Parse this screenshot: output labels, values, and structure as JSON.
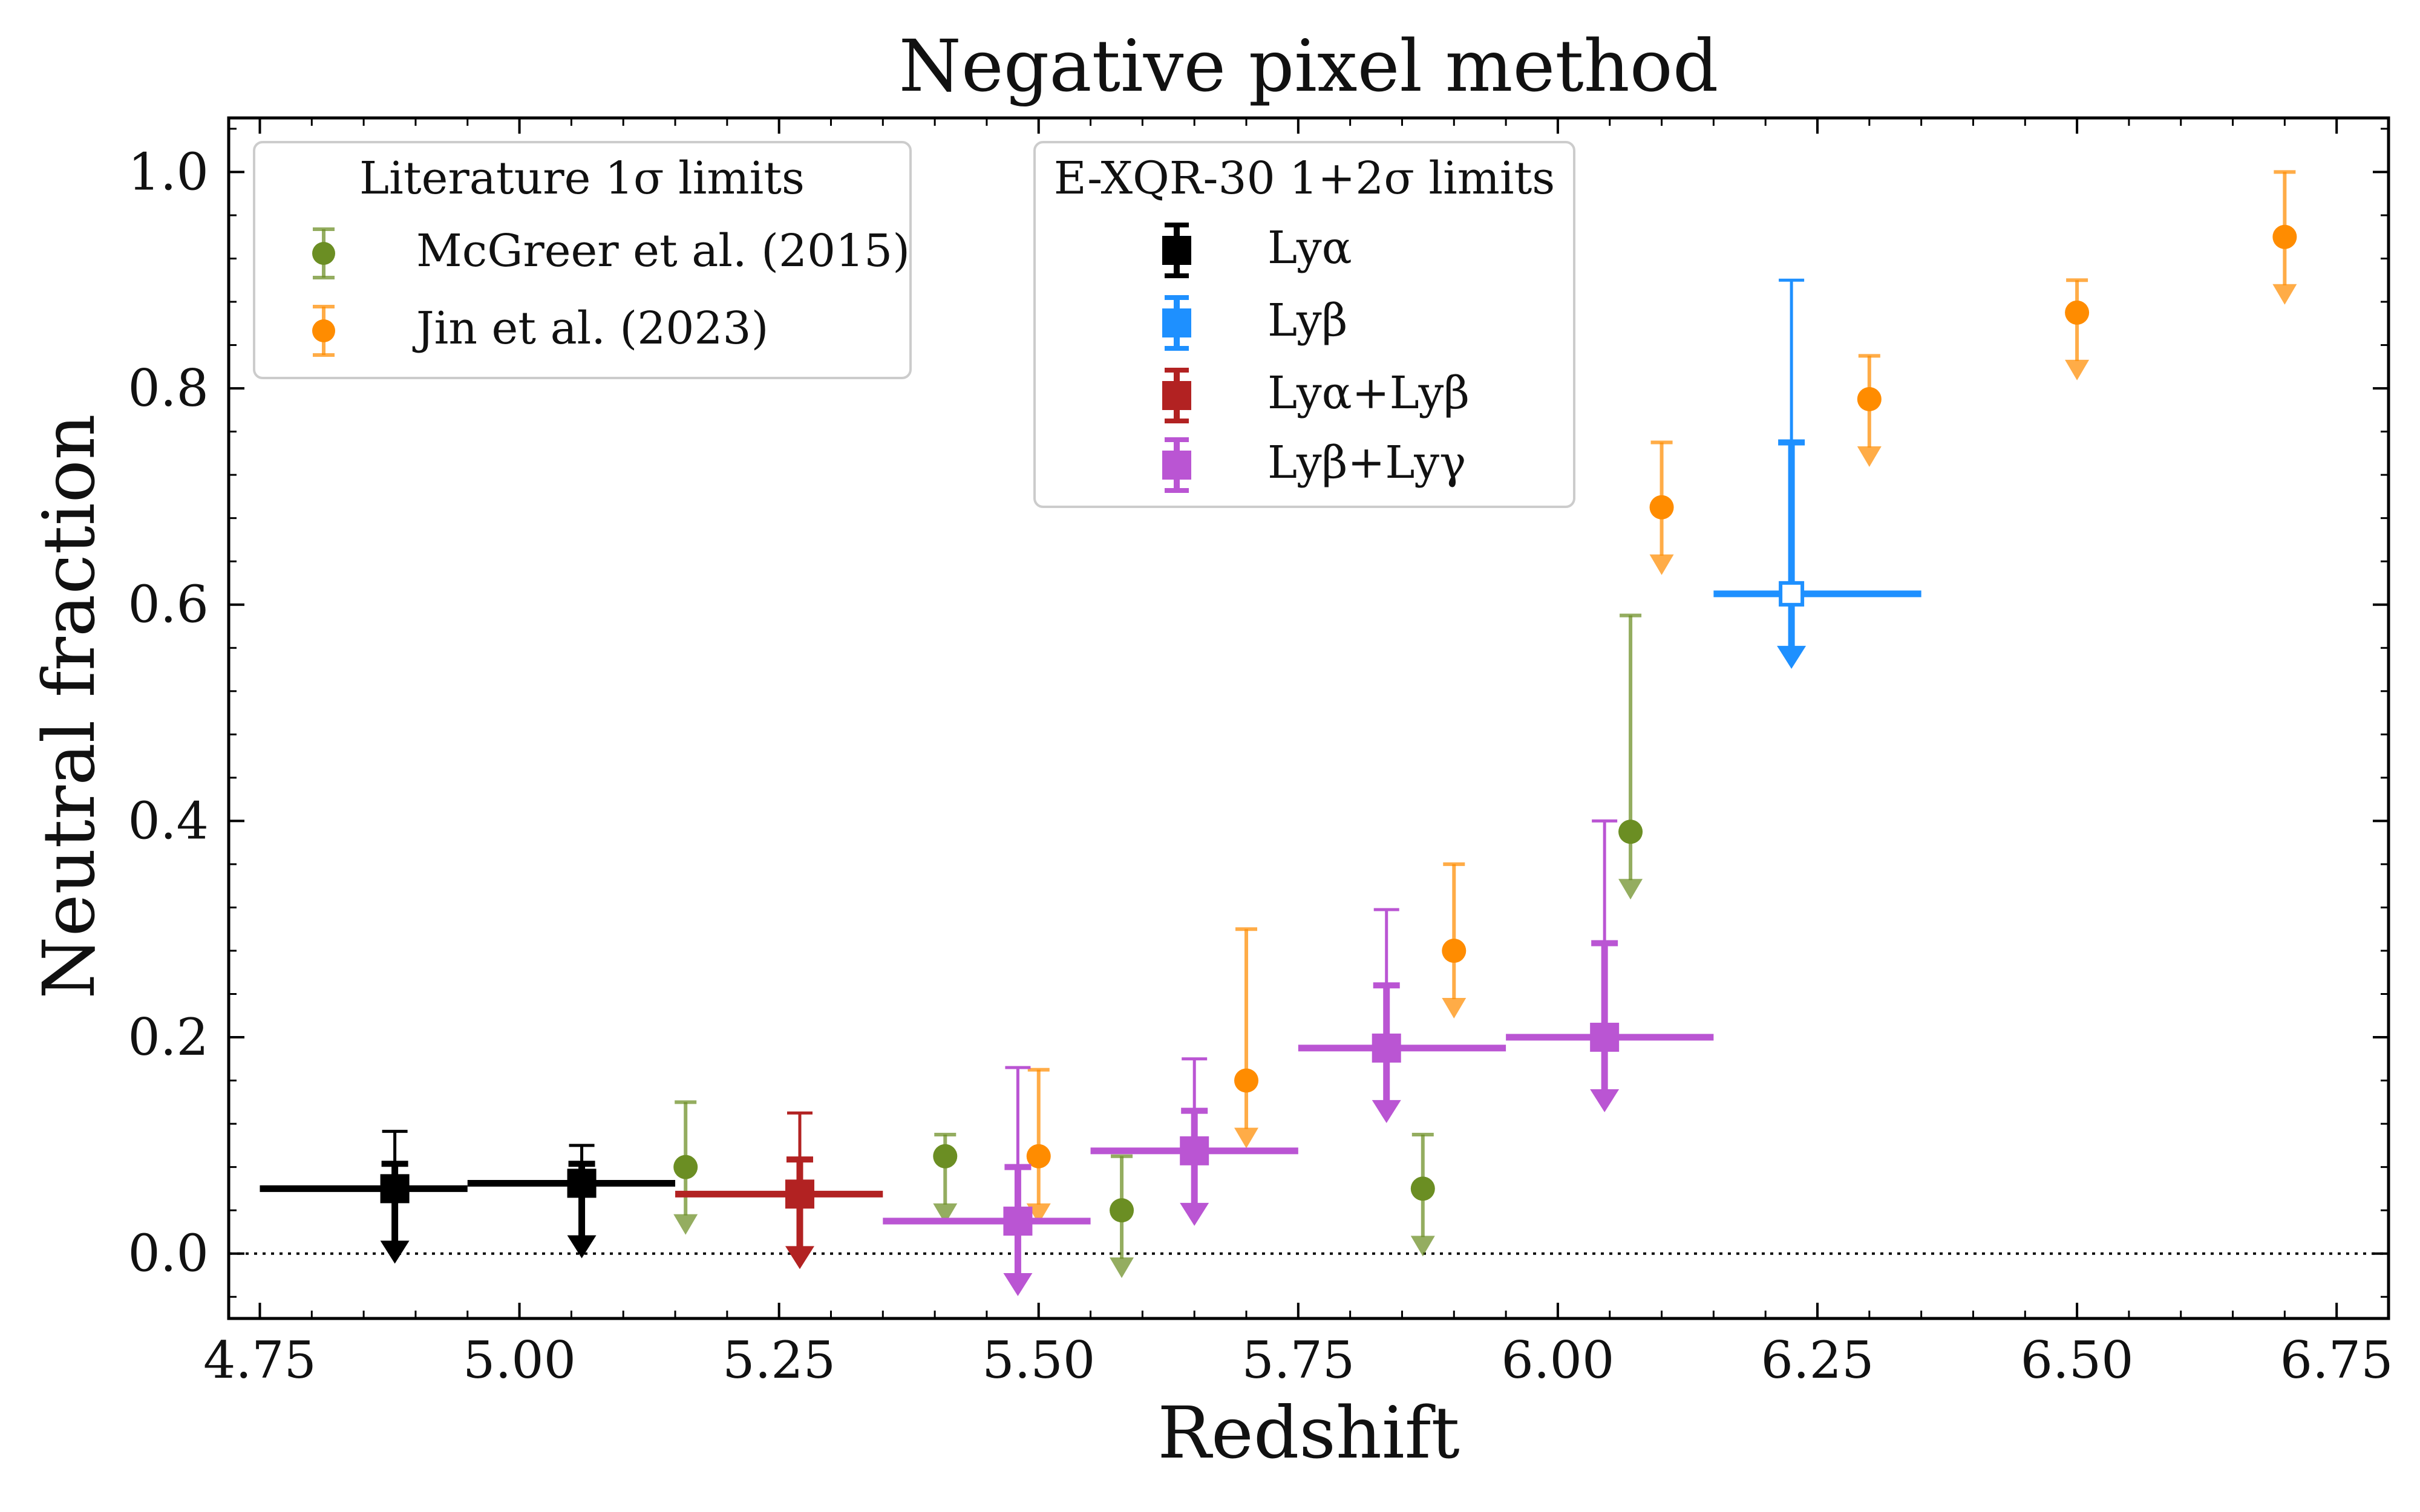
{
  "chart_data": {
    "type": "scatter",
    "title": "Negative pixel method",
    "xlabel": "Redshift",
    "ylabel": "Neutral fraction",
    "xlim": [
      4.72,
      6.8
    ],
    "ylim": [
      -0.06,
      1.05
    ],
    "xticks": [
      4.75,
      5.0,
      5.25,
      5.5,
      5.75,
      6.0,
      6.25,
      6.5,
      6.75
    ],
    "xtick_labels": [
      "4.75",
      "5.00",
      "5.25",
      "5.50",
      "5.75",
      "6.00",
      "6.25",
      "6.50",
      "6.75"
    ],
    "yticks": [
      0.0,
      0.2,
      0.4,
      0.6,
      0.8,
      1.0
    ],
    "ytick_labels": [
      "0.0",
      "0.2",
      "0.4",
      "0.6",
      "0.8",
      "1.0"
    ],
    "reference_line": {
      "y": 0.0,
      "style": "dotted"
    },
    "legends": [
      {
        "title": "Literature 1σ limits",
        "placement": "top-left",
        "entries": [
          "McGreer et al. (2015)",
          "Jin et al. (2023)"
        ]
      },
      {
        "title": "E-XQR-30 1+2σ limits",
        "placement": "top-center",
        "entries": [
          "Lyα",
          "Lyβ",
          "Lyα+Lyβ",
          "Lyβ+Lyγ"
        ]
      }
    ],
    "series": [
      {
        "name": "McGreer et al. (2015)",
        "color": "#6b8e23",
        "marker": "circle",
        "points": [
          {
            "x": 5.16,
            "y": 0.08,
            "upper": 0.14
          },
          {
            "x": 5.41,
            "y": 0.09,
            "upper": 0.11
          },
          {
            "x": 5.58,
            "y": 0.04,
            "upper": 0.09
          },
          {
            "x": 5.87,
            "y": 0.06,
            "upper": 0.11
          },
          {
            "x": 6.07,
            "y": 0.39,
            "upper": 0.59
          }
        ]
      },
      {
        "name": "Jin et al. (2023)",
        "color": "#ff8c00",
        "marker": "circle",
        "points": [
          {
            "x": 5.5,
            "y": 0.09,
            "upper": 0.17
          },
          {
            "x": 5.7,
            "y": 0.16,
            "upper": 0.3
          },
          {
            "x": 5.9,
            "y": 0.28,
            "upper": 0.36
          },
          {
            "x": 6.1,
            "y": 0.69,
            "upper": 0.75
          },
          {
            "x": 6.3,
            "y": 0.79,
            "upper": 0.83
          },
          {
            "x": 6.5,
            "y": 0.87,
            "upper": 0.9
          },
          {
            "x": 6.7,
            "y": 0.94,
            "upper": 1.0
          }
        ]
      },
      {
        "name": "Lyα",
        "color": "#000000",
        "marker": "square",
        "points": [
          {
            "x": 4.88,
            "y": 0.06,
            "xmin": 4.75,
            "xmax": 4.95,
            "sigma1": 0.083,
            "sigma2": 0.113
          },
          {
            "x": 5.06,
            "y": 0.065,
            "xmin": 4.95,
            "xmax": 5.15,
            "sigma1": 0.083,
            "sigma2": 0.1
          }
        ]
      },
      {
        "name": "Lyβ",
        "color": "#1e90ff",
        "marker": "square-open",
        "points": [
          {
            "x": 6.225,
            "y": 0.61,
            "xmin": 6.15,
            "xmax": 6.35,
            "sigma1": 0.75,
            "sigma2": 0.9
          }
        ]
      },
      {
        "name": "Lyα+Lyβ",
        "color": "#b22222",
        "marker": "square",
        "points": [
          {
            "x": 5.27,
            "y": 0.055,
            "xmin": 5.15,
            "xmax": 5.35,
            "sigma1": 0.087,
            "sigma2": 0.13
          }
        ]
      },
      {
        "name": "Lyβ+Lyγ",
        "color": "#ba55d3",
        "marker": "square",
        "points": [
          {
            "x": 5.48,
            "y": 0.03,
            "xmin": 5.35,
            "xmax": 5.55,
            "sigma1": 0.08,
            "sigma2": 0.172
          },
          {
            "x": 5.65,
            "y": 0.095,
            "xmin": 5.55,
            "xmax": 5.75,
            "sigma1": 0.132,
            "sigma2": 0.18
          },
          {
            "x": 5.835,
            "y": 0.19,
            "xmin": 5.75,
            "xmax": 5.95,
            "sigma1": 0.248,
            "sigma2": 0.318
          },
          {
            "x": 6.045,
            "y": 0.2,
            "xmin": 5.95,
            "xmax": 6.15,
            "sigma1": 0.287,
            "sigma2": 0.4
          }
        ]
      }
    ]
  }
}
